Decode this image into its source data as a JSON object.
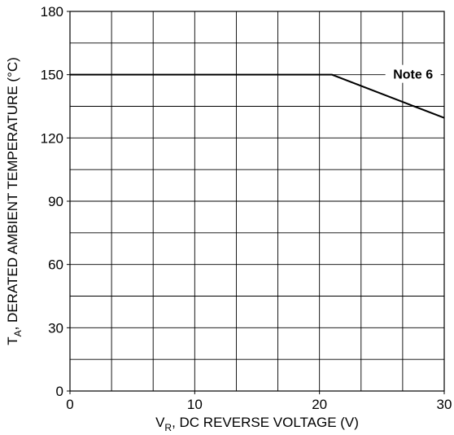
{
  "chart_data": {
    "type": "line",
    "xlabel": {
      "main": "V",
      "sub": "R",
      "rest": ", DC REVERSE VOLTAGE (V)"
    },
    "ylabel": {
      "main": "T",
      "sub": "A",
      "rest": ", DERATED AMBIENT TEMPERATURE (°C)"
    },
    "xlim": [
      0,
      30
    ],
    "ylim": [
      0,
      180
    ],
    "xticks": [
      0,
      10,
      20,
      30
    ],
    "yticks": [
      0,
      30,
      60,
      90,
      120,
      150,
      180
    ],
    "x_minor_step": 3.3333,
    "y_minor_step": 15,
    "grid": true,
    "series": [
      {
        "x": [
          0,
          21,
          30
        ],
        "y": [
          150,
          150,
          129.5
        ]
      }
    ],
    "annotations": [
      {
        "text": "Note 6",
        "x": 27.5,
        "y": 150
      }
    ]
  }
}
